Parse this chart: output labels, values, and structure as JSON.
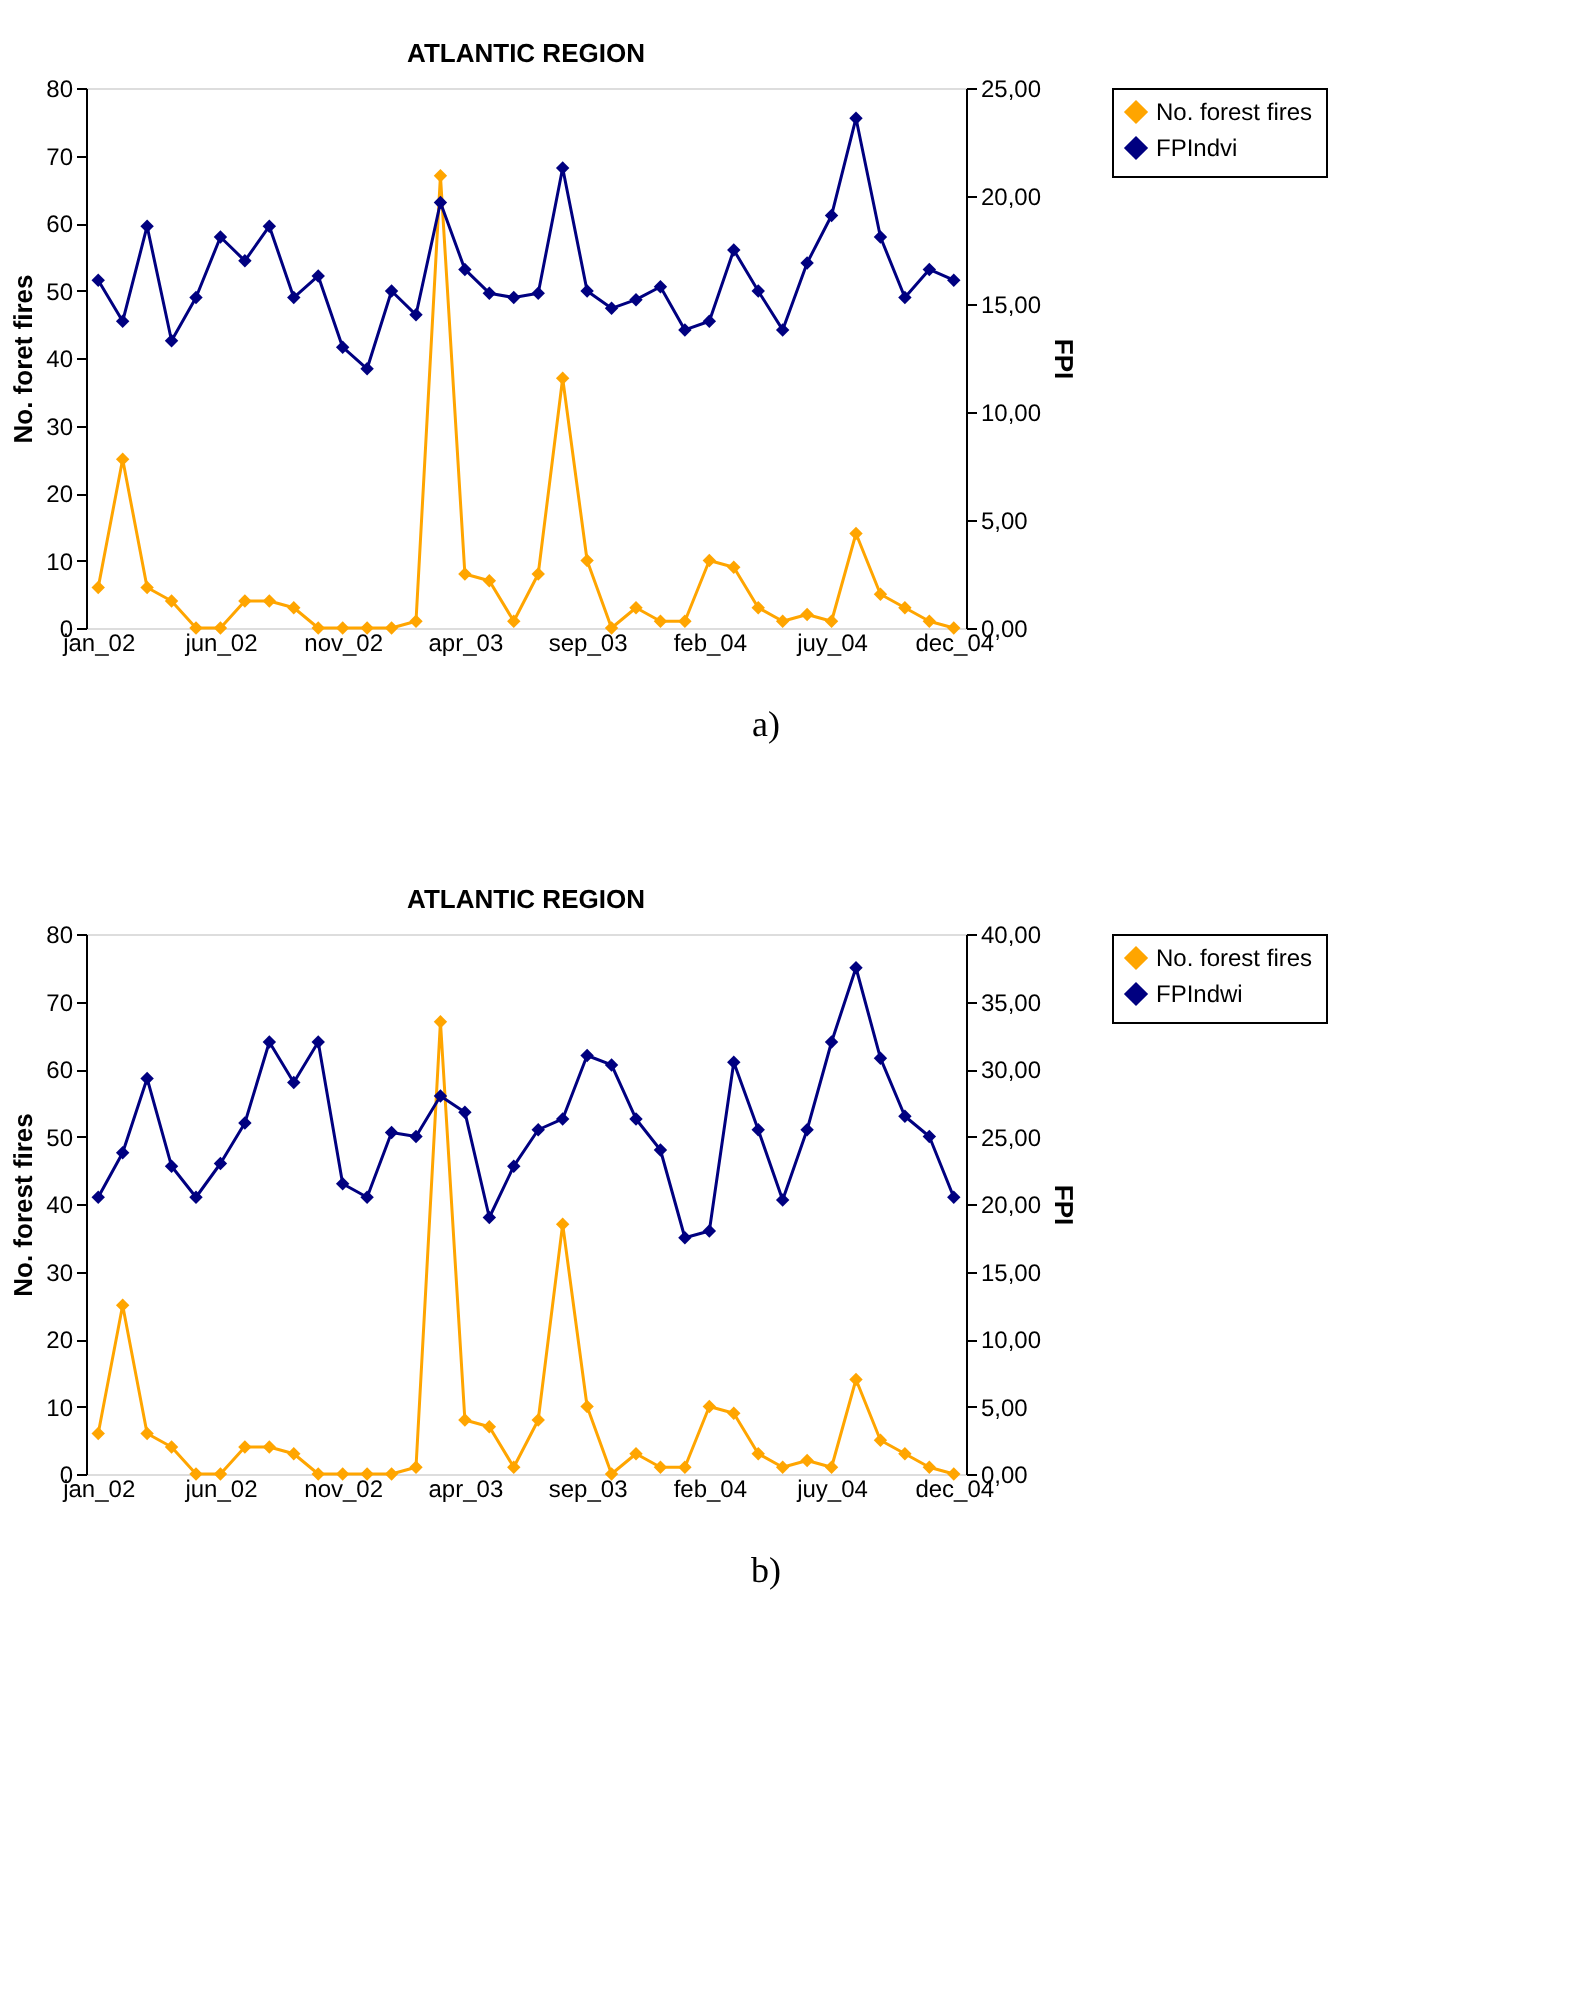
{
  "chart_data": [
    {
      "type": "line",
      "title": "ATLANTIC REGION",
      "ylabel": "No. foret fires",
      "y2label": "FPI",
      "categories": [
        "jan_02",
        null,
        null,
        null,
        null,
        "jun_02",
        null,
        null,
        null,
        null,
        "nov_02",
        null,
        null,
        null,
        null,
        "apr_03",
        null,
        null,
        null,
        null,
        "sep_03",
        null,
        null,
        null,
        null,
        "feb_04",
        null,
        null,
        null,
        null,
        "juy_04",
        null,
        null,
        null,
        null,
        "dec_04"
      ],
      "series": [
        {
          "name": "No. forest fires",
          "color": "#ffa500",
          "values": [
            6,
            25,
            6,
            4,
            0,
            0,
            4,
            4,
            3,
            0,
            0,
            0,
            0,
            1,
            67,
            8,
            7,
            1,
            8,
            37,
            10,
            0,
            3,
            1,
            1,
            10,
            9,
            3,
            1,
            2,
            1,
            14,
            5,
            3,
            1,
            0
          ]
        },
        {
          "name": "FPIndvi",
          "color": "#000080",
          "axis": "y2",
          "values": [
            16.1,
            14.2,
            18.6,
            13.3,
            15.3,
            18.1,
            17.0,
            18.6,
            15.3,
            16.3,
            13.0,
            12.0,
            15.6,
            14.5,
            19.7,
            16.6,
            15.5,
            15.3,
            15.5,
            21.3,
            15.6,
            14.8,
            15.2,
            15.8,
            13.8,
            14.2,
            17.5,
            15.6,
            13.8,
            16.9,
            19.1,
            23.6,
            18.1,
            15.3,
            16.6,
            16.1
          ]
        }
      ],
      "ylim": [
        0,
        80
      ],
      "yticks": [
        0,
        10,
        20,
        30,
        40,
        50,
        60,
        70,
        80
      ],
      "y2lim": [
        0,
        25
      ],
      "y2ticks": [
        {
          "value": 0,
          "label": "0,00"
        },
        {
          "value": 5,
          "label": "5,00"
        },
        {
          "value": 10,
          "label": "10,00"
        },
        {
          "value": 15,
          "label": "15,00"
        },
        {
          "value": 20,
          "label": "20,00"
        },
        {
          "value": 25,
          "label": "25,00"
        }
      ],
      "marker": "diamond",
      "grid": false,
      "legend": "right",
      "annotations": [
        "a)"
      ]
    },
    {
      "type": "line",
      "title": "ATLANTIC REGION",
      "ylabel": "No. forest fires",
      "y2label": "FPI",
      "categories": [
        "jan_02",
        null,
        null,
        null,
        null,
        "jun_02",
        null,
        null,
        null,
        null,
        "nov_02",
        null,
        null,
        null,
        null,
        "apr_03",
        null,
        null,
        null,
        null,
        "sep_03",
        null,
        null,
        null,
        null,
        "feb_04",
        null,
        null,
        null,
        null,
        "juy_04",
        null,
        null,
        null,
        null,
        "dec_04"
      ],
      "series": [
        {
          "name": "No. forest fires",
          "color": "#ffa500",
          "values": [
            6,
            25,
            6,
            4,
            0,
            0,
            4,
            4,
            3,
            0,
            0,
            0,
            0,
            1,
            67,
            8,
            7,
            1,
            8,
            37,
            10,
            0,
            3,
            1,
            1,
            10,
            9,
            3,
            1,
            2,
            1,
            14,
            5,
            3,
            1,
            0
          ]
        },
        {
          "name": "FPIndwi",
          "color": "#000080",
          "axis": "y2",
          "values": [
            20.5,
            23.8,
            29.3,
            22.8,
            20.5,
            23.0,
            26.0,
            32.0,
            29.0,
            32.0,
            21.5,
            20.5,
            25.3,
            25.0,
            28.0,
            26.8,
            19.0,
            22.8,
            25.5,
            26.3,
            31.0,
            30.3,
            26.3,
            24.0,
            17.5,
            18.0,
            30.5,
            25.5,
            20.3,
            25.5,
            32.0,
            37.5,
            30.8,
            26.5,
            25.0,
            20.5
          ]
        }
      ],
      "ylim": [
        0,
        80
      ],
      "yticks": [
        0,
        10,
        20,
        30,
        40,
        50,
        60,
        70,
        80
      ],
      "y2lim": [
        0,
        40
      ],
      "y2ticks": [
        {
          "value": 0,
          "label": "0,00"
        },
        {
          "value": 5,
          "label": "5,00"
        },
        {
          "value": 10,
          "label": "10,00"
        },
        {
          "value": 15,
          "label": "15,00"
        },
        {
          "value": 20,
          "label": "20,00"
        },
        {
          "value": 25,
          "label": "25,00"
        },
        {
          "value": 30,
          "label": "30,00"
        },
        {
          "value": 35,
          "label": "35,00"
        },
        {
          "value": 40,
          "label": "40,00"
        }
      ],
      "marker": "diamond",
      "grid": false,
      "legend": "right",
      "annotations": [
        "b)"
      ]
    }
  ]
}
